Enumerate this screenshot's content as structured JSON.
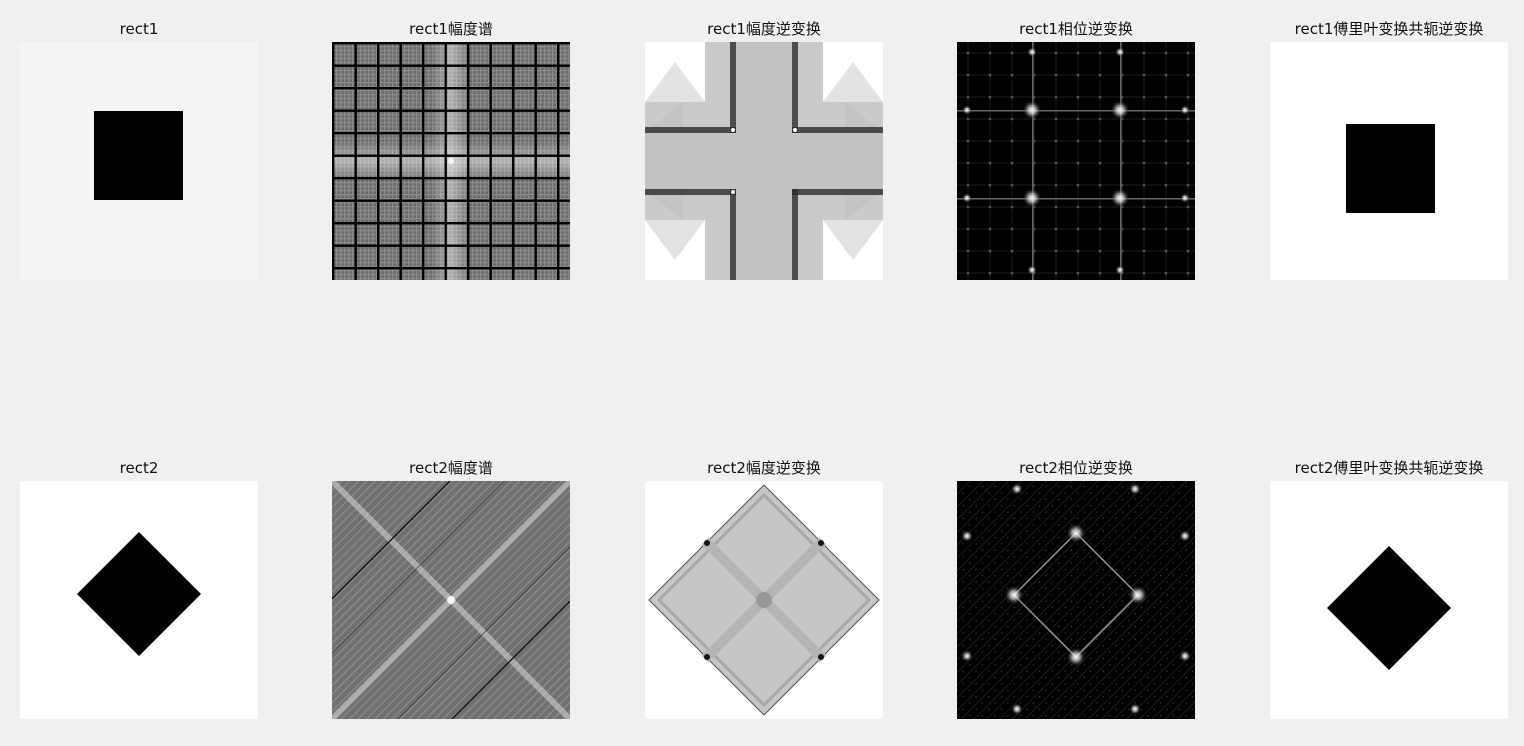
{
  "figure": {
    "background": "#f0f0f0",
    "rows": [
      {
        "panels": [
          {
            "title": "rect1",
            "content": "light gray square image with centered black square"
          },
          {
            "title": "rect1幅度谱",
            "content": "magnitude spectrum: gray grid of horizontal and vertical lines with bright center cross"
          },
          {
            "title": "rect1幅度逆变换",
            "content": "gray cross-shaped pattern, white corners, black edges"
          },
          {
            "title": "rect1相位逆变换",
            "content": "black background with grid of bright dots and starbursts"
          },
          {
            "title": "rect1傅里叶变换共轭逆变换",
            "content": "white square image with black square"
          }
        ]
      },
      {
        "panels": [
          {
            "title": "rect2",
            "content": "white square image with centered black diamond"
          },
          {
            "title": "rect2幅度谱",
            "content": "magnitude spectrum: gray diagonal striped texture with bright X"
          },
          {
            "title": "rect2幅度逆变换",
            "content": "gray diamond-shaped pattern with white corners"
          },
          {
            "title": "rect2相位逆变换",
            "content": "black background with diamond of bright starbursts"
          },
          {
            "title": "rect2傅里叶变换共轭逆变换",
            "content": "white square image with black diamond"
          }
        ]
      }
    ]
  }
}
